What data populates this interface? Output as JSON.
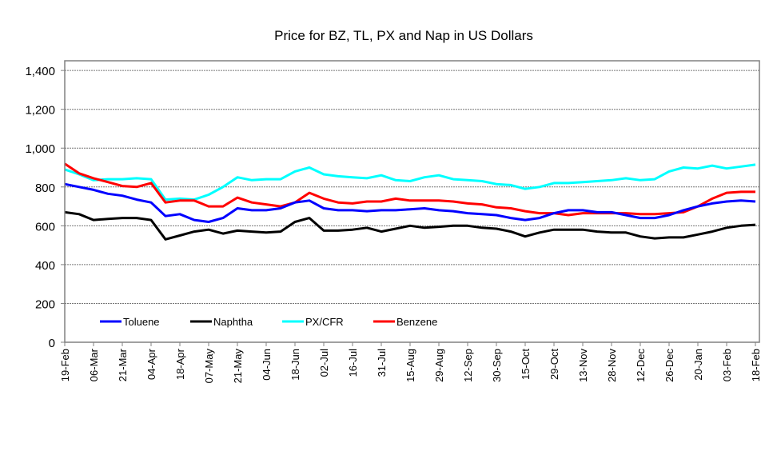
{
  "chart_data": {
    "type": "line",
    "title": "Price for BZ, TL, PX and Nap in US Dollars",
    "xlabel": "",
    "ylabel": "",
    "ylim": [
      0,
      1450
    ],
    "yticks": [
      0,
      200,
      400,
      600,
      800,
      1000,
      1200,
      1400
    ],
    "ytick_labels": [
      "0",
      "200",
      "400",
      "600",
      "800",
      "1,000",
      "1,200",
      "1,400"
    ],
    "grid": "horizontal dotted",
    "legend_position": "bottom-inside",
    "xtick_labels": [
      "19-Feb",
      "06-Mar",
      "21-Mar",
      "04-Apr",
      "18-Apr",
      "07-May",
      "21-May",
      "04-Jun",
      "18-Jun",
      "02-Jul",
      "16-Jul",
      "31-Jul",
      "15-Aug",
      "29-Aug",
      "12-Sep",
      "30-Sep",
      "15-Oct",
      "29-Oct",
      "13-Nov",
      "28-Nov",
      "12-Dec",
      "26-Dec",
      "20-Jan",
      "03-Feb",
      "18-Feb"
    ],
    "x_note": "values sampled at each tick label and midway between ticks (49 points)",
    "series": [
      {
        "name": "Toluene",
        "color": "#0000ff",
        "values": [
          815,
          800,
          785,
          765,
          755,
          735,
          720,
          650,
          660,
          630,
          620,
          640,
          690,
          680,
          680,
          690,
          720,
          730,
          690,
          680,
          680,
          675,
          680,
          680,
          685,
          690,
          680,
          675,
          665,
          660,
          655,
          640,
          630,
          640,
          665,
          680,
          680,
          670,
          670,
          655,
          640,
          640,
          655,
          680,
          700,
          715,
          725,
          730,
          725
        ]
      },
      {
        "name": "Naphtha",
        "color": "#000000",
        "values": [
          670,
          660,
          630,
          635,
          640,
          640,
          630,
          530,
          550,
          570,
          580,
          560,
          575,
          570,
          565,
          570,
          620,
          640,
          575,
          575,
          580,
          590,
          570,
          585,
          600,
          590,
          595,
          600,
          600,
          590,
          585,
          570,
          545,
          565,
          580,
          580,
          580,
          570,
          565,
          565,
          545,
          535,
          540,
          540,
          555,
          570,
          590,
          600,
          605
        ]
      },
      {
        "name": "PX/CFR",
        "color": "#00ffff",
        "values": [
          890,
          865,
          835,
          840,
          840,
          845,
          840,
          735,
          740,
          735,
          760,
          800,
          850,
          835,
          840,
          840,
          880,
          900,
          865,
          855,
          850,
          845,
          860,
          835,
          830,
          850,
          860,
          840,
          835,
          830,
          815,
          810,
          790,
          800,
          820,
          820,
          825,
          830,
          835,
          845,
          835,
          840,
          880,
          900,
          895,
          910,
          895,
          905,
          915
        ]
      },
      {
        "name": "Benzene",
        "color": "#ff0000",
        "values": [
          920,
          870,
          845,
          825,
          805,
          800,
          820,
          720,
          730,
          730,
          700,
          700,
          745,
          720,
          710,
          700,
          720,
          770,
          740,
          720,
          715,
          725,
          725,
          740,
          730,
          730,
          730,
          725,
          715,
          710,
          695,
          690,
          675,
          665,
          665,
          655,
          665,
          665,
          665,
          665,
          660,
          660,
          665,
          670,
          700,
          740,
          770,
          775,
          775
        ]
      }
    ]
  }
}
